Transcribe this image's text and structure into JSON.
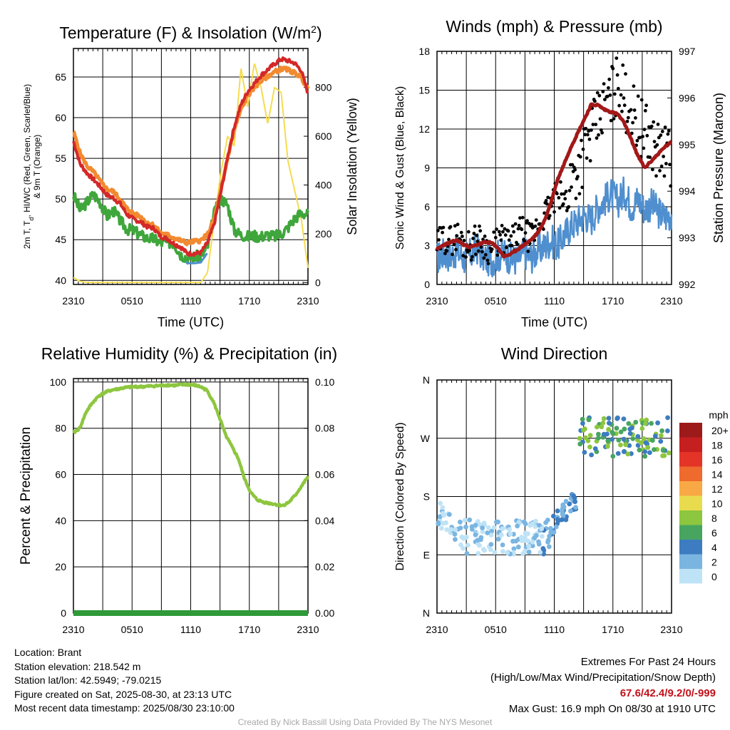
{
  "chart_data": [
    {
      "type": "line",
      "title": "Temperature (F) & Insolation (W/m",
      "title_sup": "2",
      "title_end": ")",
      "xlabel": "Time (UTC)",
      "ylabel_lines": [
        "2m T, T",
        "d",
        ", HI/WC (Red, Green, Scarlet/Blue)",
        "& 9m T (Orange)"
      ],
      "y2label": "Solar Insolation (Yellow)",
      "x_ticks": [
        "2310",
        "0510",
        "1110",
        "1710",
        "2310"
      ],
      "y_ticks": [
        40,
        45,
        50,
        55,
        60,
        65
      ],
      "ylim": [
        39.5,
        68.5
      ],
      "y2_ticks": [
        0,
        200,
        400,
        600,
        800
      ],
      "y2lim": [
        -8,
        960
      ],
      "grid": true,
      "colors": {
        "temp": "#d42828",
        "dewpoint": "#3fa63b",
        "temp9m": "#f28a30",
        "index": "#4f8fcf",
        "solar": "#f5dc50"
      },
      "series": [
        {
          "key": "temp",
          "values": [
            57.1,
            54.3,
            53.2,
            52.4,
            51.5,
            50.5,
            50.1,
            49.4,
            48.1,
            47.5,
            47.2,
            46.6,
            46.4,
            45.4,
            45.1,
            44.5,
            44.1,
            43.3,
            43.3,
            43.4,
            44.6,
            46.9,
            50.8,
            55.1,
            58.9,
            61.6,
            63.2,
            64.2,
            65.2,
            65.9,
            66.6,
            67.2,
            67.0,
            66.7,
            65.8,
            63.0
          ]
        },
        {
          "key": "temp9m",
          "values": [
            58.3,
            55.6,
            54.1,
            53.3,
            52.2,
            51.2,
            50.9,
            49.9,
            48.8,
            48.2,
            47.8,
            47.1,
            46.8,
            45.8,
            45.6,
            45.2,
            44.9,
            44.6,
            44.8,
            44.9,
            45.6,
            47.5,
            51.0,
            55.0,
            58.5,
            61.0,
            62.7,
            63.7,
            64.5,
            65.1,
            65.6,
            66.0,
            65.9,
            65.5,
            65.0,
            63.4
          ]
        },
        {
          "key": "dewpoint",
          "values": [
            50.5,
            48.6,
            49.6,
            50.6,
            49.6,
            47.9,
            48.6,
            47.3,
            46.3,
            46.1,
            45.6,
            45.2,
            45.1,
            44.6,
            44.7,
            44.6,
            43.2,
            42.8,
            42.9,
            43.0,
            44.0,
            48.2,
            50.1,
            49.3,
            46.2,
            45.6,
            45.4,
            45.5,
            45.4,
            45.6,
            45.4,
            45.7,
            46.5,
            47.6,
            48.3,
            48.1
          ]
        },
        {
          "key": "solar",
          "values": [
            20,
            5,
            0,
            0,
            0,
            0,
            0,
            0,
            0,
            0,
            0,
            0,
            0,
            0,
            0,
            0,
            0,
            0,
            0,
            0,
            40,
            250,
            450,
            600,
            560,
            880,
            720,
            900,
            800,
            650,
            800,
            780,
            500,
            380,
            260,
            60
          ]
        }
      ]
    },
    {
      "type": "line",
      "title": "Winds (mph) & Pressure (mb)",
      "xlabel": "Time (UTC)",
      "ylabel": "Sonic Wind & Gust (Blue, Black)",
      "y2label": "Station Pressure (Maroon)",
      "x_ticks": [
        "2310",
        "0510",
        "1110",
        "1710",
        "2310"
      ],
      "y_ticks": [
        0,
        3,
        6,
        9,
        12,
        15,
        18
      ],
      "ylim": [
        0,
        18
      ],
      "y2_ticks": [
        992,
        993,
        994,
        995,
        996,
        997
      ],
      "y2lim": [
        992,
        997
      ],
      "grid": true,
      "colors": {
        "wind": "#4f8fcf",
        "gust": "#000000",
        "pressure": "#a31818"
      },
      "series": [
        {
          "key": "wind",
          "values": [
            2.0,
            2.4,
            2.2,
            2.6,
            2.0,
            2.3,
            2.8,
            2.1,
            1.8,
            2.2,
            2.4,
            2.0,
            1.9,
            2.5,
            2.1,
            2.6,
            2.9,
            3.4,
            3.0,
            3.8,
            4.5,
            4.9,
            5.4,
            5.0,
            6.0,
            6.5,
            7.0,
            6.4,
            7.2,
            6.0,
            6.6,
            5.8,
            6.2,
            5.6,
            5.2,
            5.5
          ]
        },
        {
          "key": "gust",
          "values": [
            3.0,
            3.6,
            3.4,
            3.8,
            3.2,
            3.0,
            3.6,
            3.2,
            2.6,
            3.3,
            3.5,
            3.1,
            3.9,
            4.2,
            3.4,
            4.5,
            5.4,
            6.0,
            7.1,
            6.3,
            8.2,
            9.0,
            10.3,
            11.4,
            12.6,
            13.8,
            14.5,
            15.6,
            14.3,
            13.4,
            12.6,
            11.6,
            11.2,
            10.4,
            10.2,
            9.5
          ]
        },
        {
          "key": "pressure",
          "values": [
            992.75,
            992.85,
            992.9,
            992.95,
            992.85,
            992.8,
            992.85,
            992.9,
            992.9,
            992.8,
            992.6,
            992.65,
            992.75,
            992.85,
            992.95,
            993.1,
            993.35,
            993.75,
            994.25,
            994.6,
            994.95,
            995.25,
            995.55,
            995.85,
            995.85,
            995.75,
            995.7,
            995.65,
            995.45,
            995.1,
            994.75,
            994.5,
            994.65,
            994.8,
            994.95,
            995.05
          ]
        }
      ]
    },
    {
      "type": "line",
      "title": "Relative Humidity (%) & Precipitation (in)",
      "ylabel": "Percent & Precipitation",
      "x_ticks": [
        "2310",
        "0510",
        "1110",
        "1710",
        "2310"
      ],
      "y_ticks": [
        0,
        20,
        40,
        60,
        80,
        100
      ],
      "ylim": [
        0,
        101.5
      ],
      "y2_ticks": [
        "0.00",
        "0.02",
        "0.04",
        "0.06",
        "0.08",
        "0.10"
      ],
      "y2lim": [
        0,
        0.1015
      ],
      "grid": true,
      "colors": {
        "rh": "#8dc63f",
        "precip": "#2f9a38"
      },
      "series": [
        {
          "key": "rh",
          "values": [
            78,
            80,
            87,
            91,
            94,
            95.5,
            96.5,
            97,
            97.5,
            97.8,
            98,
            98,
            98.2,
            98.3,
            98.5,
            98.7,
            98.5,
            98.8,
            98.9,
            98.7,
            98,
            96.5,
            92,
            85,
            77,
            72,
            67,
            58,
            52,
            49,
            48,
            47.5,
            47,
            46.5,
            48,
            51,
            55,
            59
          ]
        },
        {
          "key": "precip",
          "values": [
            0,
            0
          ]
        }
      ]
    },
    {
      "type": "scatter",
      "title": "Wind Direction",
      "ylabel": "Direction (Colored By Speed)",
      "x_ticks": [
        "2310",
        "0510",
        "1110",
        "1710",
        "2310"
      ],
      "y_ticks": [
        "N",
        "E",
        "S",
        "W",
        "N"
      ],
      "ylim": [
        0,
        360
      ],
      "grid": true,
      "legend": {
        "title": "mph",
        "labels": [
          "20+",
          "18",
          "16",
          "14",
          "12",
          "10",
          "8",
          "6",
          "4",
          "2",
          "0"
        ],
        "colors": [
          "#9c1a1a",
          "#c61f1f",
          "#e33427",
          "#ee6a2d",
          "#f8a945",
          "#e8dc4e",
          "#8dc63f",
          "#48a560",
          "#3d7cc0",
          "#7ab5e2",
          "#bfe3f6"
        ]
      },
      "note": "Early period points are mostly E to SE (light blue); afternoon points cluster near W to NW (green and blue)."
    }
  ],
  "footer_left": {
    "location": "Location: Brant",
    "elevation": "Station elevation: 218.542 m",
    "latlon": "Station lat/lon: 42.5949; -79.0215",
    "created": "Figure created on Sat, 2025-08-30, at 23:13 UTC",
    "recent": "Most recent data timestamp: 2025/08/30 23:10:00"
  },
  "footer_right": {
    "line1": "Extremes For Past 24 Hours",
    "line2": "(High/Low/Max Wind/Precipitation/Snow Depth)",
    "values": "67.6/42.4/9.2/0/-999",
    "gust": "Max Gust: 16.9 mph On 08/30 at 1910 UTC"
  },
  "credit": "Created By Nick Bassill Using Data Provided By The NYS Mesonet"
}
